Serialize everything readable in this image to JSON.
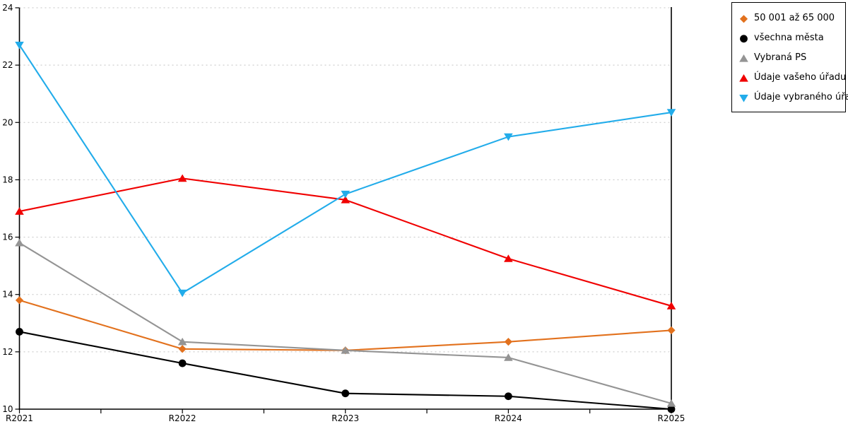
{
  "chart_data": {
    "type": "line",
    "title": "",
    "xlabel": "",
    "ylabel": "",
    "x_categories": [
      "R2021",
      "R2022",
      "R2023",
      "R2024",
      "R2025"
    ],
    "ylim": [
      10,
      24
    ],
    "y_ticks": [
      24,
      22,
      20,
      18,
      16,
      14,
      12,
      10
    ],
    "grid": "horizontal-dashed",
    "legend_position": "outside-top-right",
    "series": [
      {
        "name": "50 001 až 65 000",
        "marker": "diamond",
        "color": "#E2711D",
        "values": [
          13.8,
          12.1,
          12.05,
          12.35,
          12.75
        ]
      },
      {
        "name": "všechna města",
        "marker": "circle",
        "color": "#000000",
        "values": [
          12.7,
          11.6,
          10.55,
          10.45,
          10.0
        ]
      },
      {
        "name": "Vybraná PS",
        "marker": "triangle-up",
        "color": "#949494",
        "values": [
          15.8,
          12.35,
          12.05,
          11.8,
          10.2
        ]
      },
      {
        "name": "Údaje vašeho úřadu",
        "marker": "triangle-up",
        "color": "#F00000",
        "values": [
          16.9,
          18.05,
          17.3,
          15.25,
          13.6
        ]
      },
      {
        "name": "Údaje vybraného úřadu",
        "marker": "triangle-down",
        "color": "#22ACEA",
        "values": [
          22.7,
          14.05,
          17.5,
          19.5,
          20.35
        ]
      }
    ]
  },
  "style_colors": {
    "gridline": "#C4C4C4",
    "axis": "#000000",
    "background": "#FFFFFF"
  }
}
